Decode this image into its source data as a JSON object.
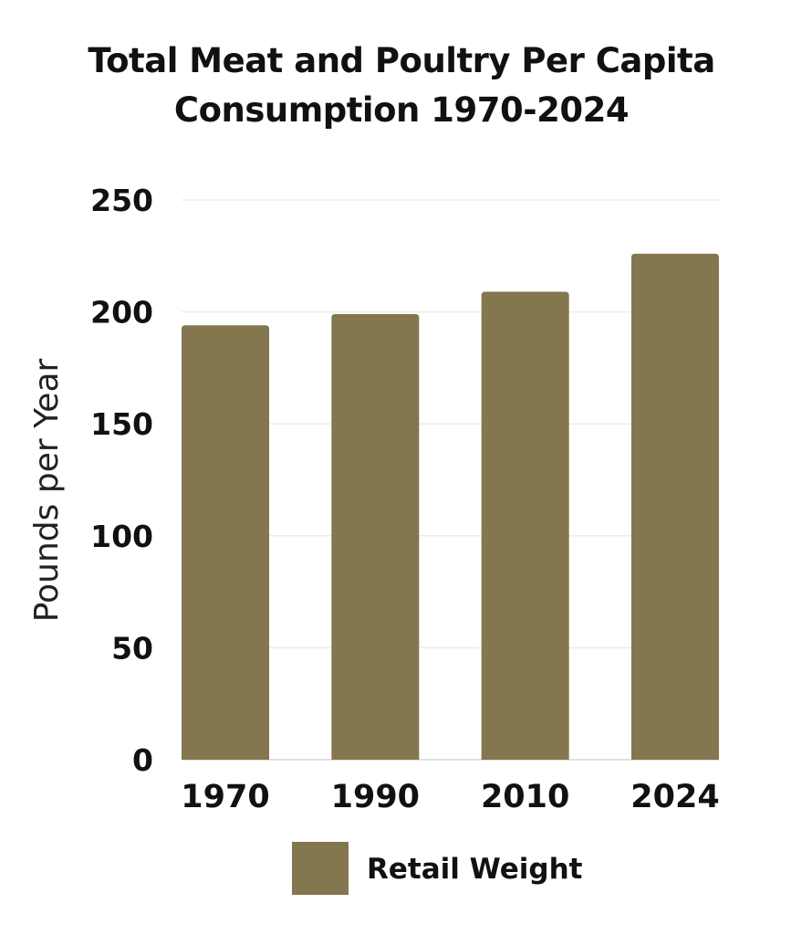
{
  "chart_data": {
    "type": "bar",
    "title_lines": [
      "Total Meat and Poultry Per Capita",
      "Consumption 1970-2024"
    ],
    "categories": [
      "1970",
      "1990",
      "2010",
      "2024"
    ],
    "series": [
      {
        "name": "Retail Weight",
        "values": [
          194,
          199,
          209,
          226
        ]
      }
    ],
    "xlabel": "",
    "ylabel": "Pounds per Year",
    "ylim": [
      0,
      250
    ],
    "yticks": [
      0,
      50,
      100,
      150,
      200,
      250
    ],
    "grid": true,
    "legend": "bottom",
    "colors": {
      "bar": "#84764e",
      "grid": "#ececec",
      "axis": "#d6d6d6"
    }
  }
}
